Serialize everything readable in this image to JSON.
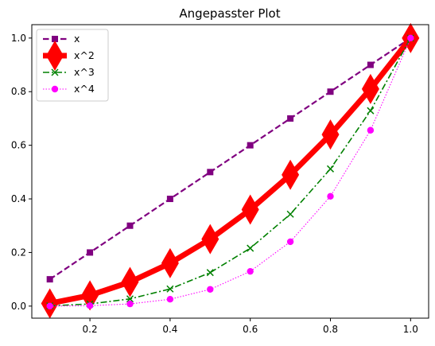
{
  "chart_data": {
    "type": "line",
    "title": "Angepasster Plot",
    "xlabel": "",
    "ylabel": "",
    "xlim": [
      0.055,
      1.045
    ],
    "ylim": [
      -0.045,
      1.05
    ],
    "x": [
      0.1,
      0.2,
      0.3,
      0.4,
      0.5,
      0.6,
      0.7,
      0.8,
      0.9,
      1.0
    ],
    "xticks": [
      0.2,
      0.4,
      0.6,
      0.8,
      1.0
    ],
    "xtick_labels": [
      "0.2",
      "0.4",
      "0.6",
      "0.8",
      "1.0"
    ],
    "yticks": [
      0.0,
      0.2,
      0.4,
      0.6,
      0.8,
      1.0
    ],
    "ytick_labels": [
      "0.0",
      "0.2",
      "0.4",
      "0.6",
      "0.8",
      "1.0"
    ],
    "grid": false,
    "legend_position": "top-left",
    "series": [
      {
        "name": "x",
        "values": [
          0.1,
          0.2,
          0.3,
          0.4,
          0.5,
          0.6,
          0.7,
          0.8,
          0.9,
          1.0
        ],
        "color": "#800080",
        "line_style": "dashed",
        "marker": "square"
      },
      {
        "name": "x^2",
        "values": [
          0.01,
          0.04,
          0.09,
          0.16,
          0.25,
          0.36,
          0.49,
          0.64,
          0.81,
          1.0
        ],
        "color": "#ff0000",
        "line_style": "solid",
        "marker": "diamond"
      },
      {
        "name": "x^3",
        "values": [
          0.001,
          0.008,
          0.027,
          0.064,
          0.125,
          0.216,
          0.343,
          0.512,
          0.729,
          1.0
        ],
        "color": "#008000",
        "line_style": "dashdot",
        "marker": "x"
      },
      {
        "name": "x^4",
        "values": [
          0.0001,
          0.0016,
          0.0081,
          0.0256,
          0.0625,
          0.1296,
          0.2401,
          0.4096,
          0.6561,
          1.0
        ],
        "color": "#ff00ff",
        "line_style": "dotted",
        "marker": "circle"
      }
    ]
  }
}
